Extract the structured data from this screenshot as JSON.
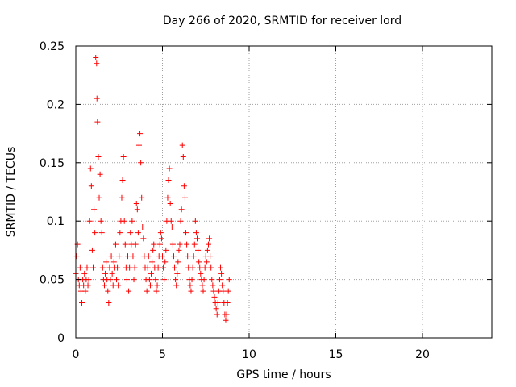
{
  "chart_data": {
    "type": "scatter",
    "title": "Day 266 of 2020, SRMTID for receiver lord",
    "xlabel": "GPS time / hours",
    "ylabel": "SRMTID / TECUs",
    "xlim": [
      0,
      24
    ],
    "ylim": [
      0,
      0.25
    ],
    "xticks": [
      "0",
      "5",
      "10",
      "15",
      "20"
    ],
    "yticks": [
      "0",
      "0.05",
      "0.1",
      "0.15",
      "0.2",
      "0.25"
    ],
    "grid": true,
    "marker": "+",
    "color": "#ff0000",
    "series": [
      {
        "x": [
          0.0,
          0.05,
          0.1,
          0.15,
          0.2,
          0.25,
          0.3,
          0.35,
          0.4,
          0.45,
          0.5,
          0.55,
          0.6,
          0.65,
          0.7,
          0.75,
          0.8,
          0.85,
          0.9,
          0.95,
          1.0,
          1.05,
          1.1,
          1.15,
          1.2,
          1.22,
          1.25,
          1.3,
          1.35,
          1.4,
          1.45,
          1.5,
          1.55,
          1.6,
          1.65,
          1.7,
          1.75,
          1.8,
          1.85,
          1.9,
          1.95,
          2.0,
          2.05,
          2.1,
          2.15,
          2.2,
          2.25,
          2.3,
          2.35,
          2.4,
          2.45,
          2.5,
          2.55,
          2.6,
          2.65,
          2.7,
          2.75,
          2.8,
          2.85,
          2.9,
          2.95,
          3.0,
          3.05,
          3.1,
          3.15,
          3.2,
          3.25,
          3.3,
          3.35,
          3.4,
          3.45,
          3.5,
          3.55,
          3.6,
          3.65,
          3.7,
          3.75,
          3.8,
          3.85,
          3.9,
          3.95,
          4.0,
          4.05,
          4.1,
          4.15,
          4.2,
          4.25,
          4.3,
          4.35,
          4.4,
          4.45,
          4.5,
          4.55,
          4.6,
          4.65,
          4.7,
          4.75,
          4.8,
          4.85,
          4.9,
          4.95,
          5.0,
          5.05,
          5.1,
          5.15,
          5.2,
          5.25,
          5.3,
          5.35,
          5.4,
          5.45,
          5.5,
          5.55,
          5.6,
          5.65,
          5.7,
          5.75,
          5.8,
          5.85,
          5.9,
          5.95,
          6.0,
          6.05,
          6.1,
          6.15,
          6.2,
          6.25,
          6.3,
          6.35,
          6.4,
          6.45,
          6.5,
          6.55,
          6.6,
          6.65,
          6.7,
          6.75,
          6.8,
          6.85,
          6.9,
          6.95,
          7.0,
          7.05,
          7.1,
          7.15,
          7.2,
          7.25,
          7.3,
          7.35,
          7.4,
          7.45,
          7.5,
          7.55,
          7.6,
          7.65,
          7.7,
          7.75,
          7.8,
          7.85,
          7.9,
          7.95,
          8.0,
          8.05,
          8.1,
          8.15,
          8.2,
          8.25,
          8.3,
          8.35,
          8.4,
          8.45,
          8.5,
          8.55,
          8.6,
          8.65,
          8.7,
          8.75,
          8.8,
          8.85
        ],
        "y": [
          0.055,
          0.07,
          0.08,
          0.05,
          0.045,
          0.06,
          0.04,
          0.03,
          0.05,
          0.045,
          0.055,
          0.04,
          0.05,
          0.06,
          0.045,
          0.05,
          0.1,
          0.145,
          0.13,
          0.075,
          0.06,
          0.11,
          0.09,
          0.24,
          0.235,
          0.205,
          0.185,
          0.155,
          0.12,
          0.14,
          0.1,
          0.09,
          0.06,
          0.05,
          0.045,
          0.055,
          0.065,
          0.05,
          0.04,
          0.03,
          0.06,
          0.05,
          0.07,
          0.055,
          0.045,
          0.065,
          0.06,
          0.08,
          0.05,
          0.06,
          0.045,
          0.07,
          0.09,
          0.1,
          0.12,
          0.135,
          0.155,
          0.1,
          0.08,
          0.06,
          0.05,
          0.07,
          0.04,
          0.06,
          0.09,
          0.08,
          0.1,
          0.07,
          0.05,
          0.06,
          0.08,
          0.115,
          0.11,
          0.09,
          0.165,
          0.175,
          0.15,
          0.12,
          0.095,
          0.085,
          0.07,
          0.06,
          0.05,
          0.04,
          0.06,
          0.07,
          0.05,
          0.045,
          0.055,
          0.065,
          0.075,
          0.08,
          0.06,
          0.05,
          0.04,
          0.045,
          0.06,
          0.07,
          0.08,
          0.09,
          0.085,
          0.07,
          0.06,
          0.05,
          0.065,
          0.075,
          0.1,
          0.12,
          0.135,
          0.145,
          0.115,
          0.1,
          0.095,
          0.08,
          0.07,
          0.06,
          0.05,
          0.045,
          0.055,
          0.065,
          0.075,
          0.08,
          0.1,
          0.11,
          0.165,
          0.155,
          0.13,
          0.12,
          0.09,
          0.08,
          0.07,
          0.06,
          0.05,
          0.045,
          0.04,
          0.05,
          0.06,
          0.07,
          0.08,
          0.1,
          0.09,
          0.085,
          0.075,
          0.065,
          0.06,
          0.055,
          0.05,
          0.045,
          0.04,
          0.05,
          0.06,
          0.07,
          0.065,
          0.075,
          0.08,
          0.085,
          0.07,
          0.06,
          0.05,
          0.045,
          0.04,
          0.035,
          0.03,
          0.025,
          0.02,
          0.03,
          0.04,
          0.05,
          0.06,
          0.055,
          0.045,
          0.04,
          0.03,
          0.02,
          0.015,
          0.02,
          0.03,
          0.04,
          0.05
        ]
      }
    ]
  }
}
